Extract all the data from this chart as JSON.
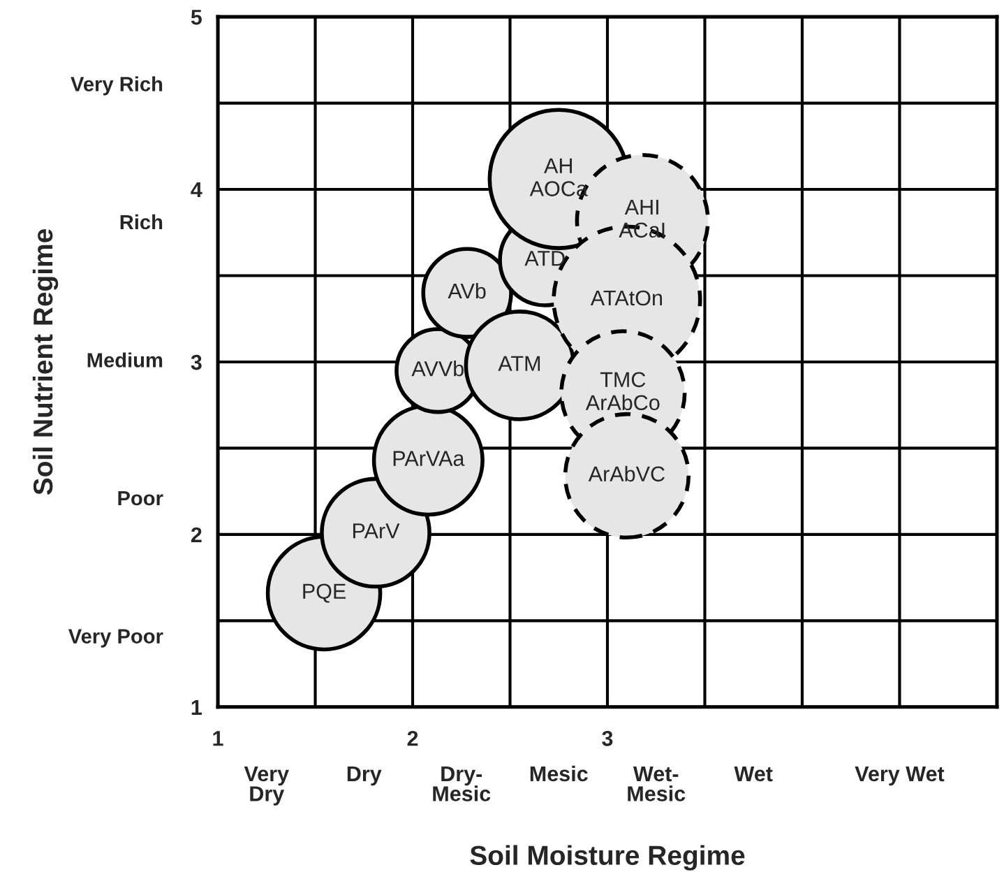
{
  "chart_data": {
    "type": "bubble",
    "xlabel": "Soil Moisture Regime",
    "ylabel": "Soil Nutrient Regime",
    "xlim": [
      1,
      5
    ],
    "ylim": [
      1,
      5
    ],
    "xticks": [
      1,
      {
        "value": 1.5,
        "label": null
      },
      2,
      {
        "value": 2.5,
        "label": null
      },
      3,
      {
        "value": 3.5,
        "label": null
      },
      {
        "value": 4,
        "label": null
      },
      {
        "value": 4.5,
        "label": null
      }
    ],
    "yticks": [
      1,
      {
        "value": 1.5,
        "label": null
      },
      2,
      {
        "value": 2.5,
        "label": null
      },
      3,
      {
        "value": 3.5,
        "label": null
      },
      4,
      {
        "value": 4.5,
        "label": null
      },
      5
    ],
    "grid": true,
    "marker": "circle",
    "series": [
      {
        "color": "#e6e6e6",
        "line_style": "solid",
        "x": [
          1.545,
          1.81,
          2.08,
          2.13,
          2.28,
          2.55,
          2.68,
          2.75
        ],
        "values": [
          1.66,
          2.01,
          2.43,
          2.95,
          3.4,
          2.98,
          3.59,
          4.06
        ],
        "sizes": [
          0.59,
          0.54,
          0.55,
          0.32,
          0.36,
          0.54,
          0.38,
          0.89
        ]
      },
      {
        "color": "#e6e6e6",
        "line_style": "dashed",
        "x": [
          3.18,
          3.1,
          3.08,
          3.1
        ],
        "values": [
          3.82,
          3.36,
          2.82,
          2.34
        ],
        "sizes": [
          0.8,
          1,
          0.71,
          0.71
        ]
      }
    ],
    "annotations": [
      {
        "text": "PQE",
        "x": 1.545,
        "y": 1.66
      },
      {
        "text": "PArV",
        "x": 1.81,
        "y": 2.01
      },
      {
        "text": "PArVAa",
        "x": 2.08,
        "y": 2.43
      },
      {
        "text": "AVVb",
        "x": 2.13,
        "y": 2.95
      },
      {
        "text": "AVb",
        "x": 2.28,
        "y": 3.4
      },
      {
        "text": "ATM",
        "x": 2.55,
        "y": 2.98
      },
      {
        "text": "ATD",
        "x": 2.68,
        "y": 3.59
      },
      {
        "text": "AH\nAOCa",
        "x": 2.75,
        "y": 4.06
      },
      {
        "text": "AHI\nACaI",
        "x": 3.18,
        "y": 3.82
      },
      {
        "text": "ATAtOn",
        "x": 3.1,
        "y": 3.36
      },
      {
        "text": "TMC\nArAbCo",
        "x": 3.08,
        "y": 2.82
      },
      {
        "text": "ArAbVC",
        "x": 3.1,
        "y": 2.34
      },
      "Very\nDry",
      "Dry",
      "Dry-\nMesic",
      "Mesic",
      "Wet-\nMesic",
      "Wet",
      "Very Wet",
      "Very Poor",
      "Poor",
      "Medium",
      "Rich",
      "Very Rich"
    ]
  }
}
